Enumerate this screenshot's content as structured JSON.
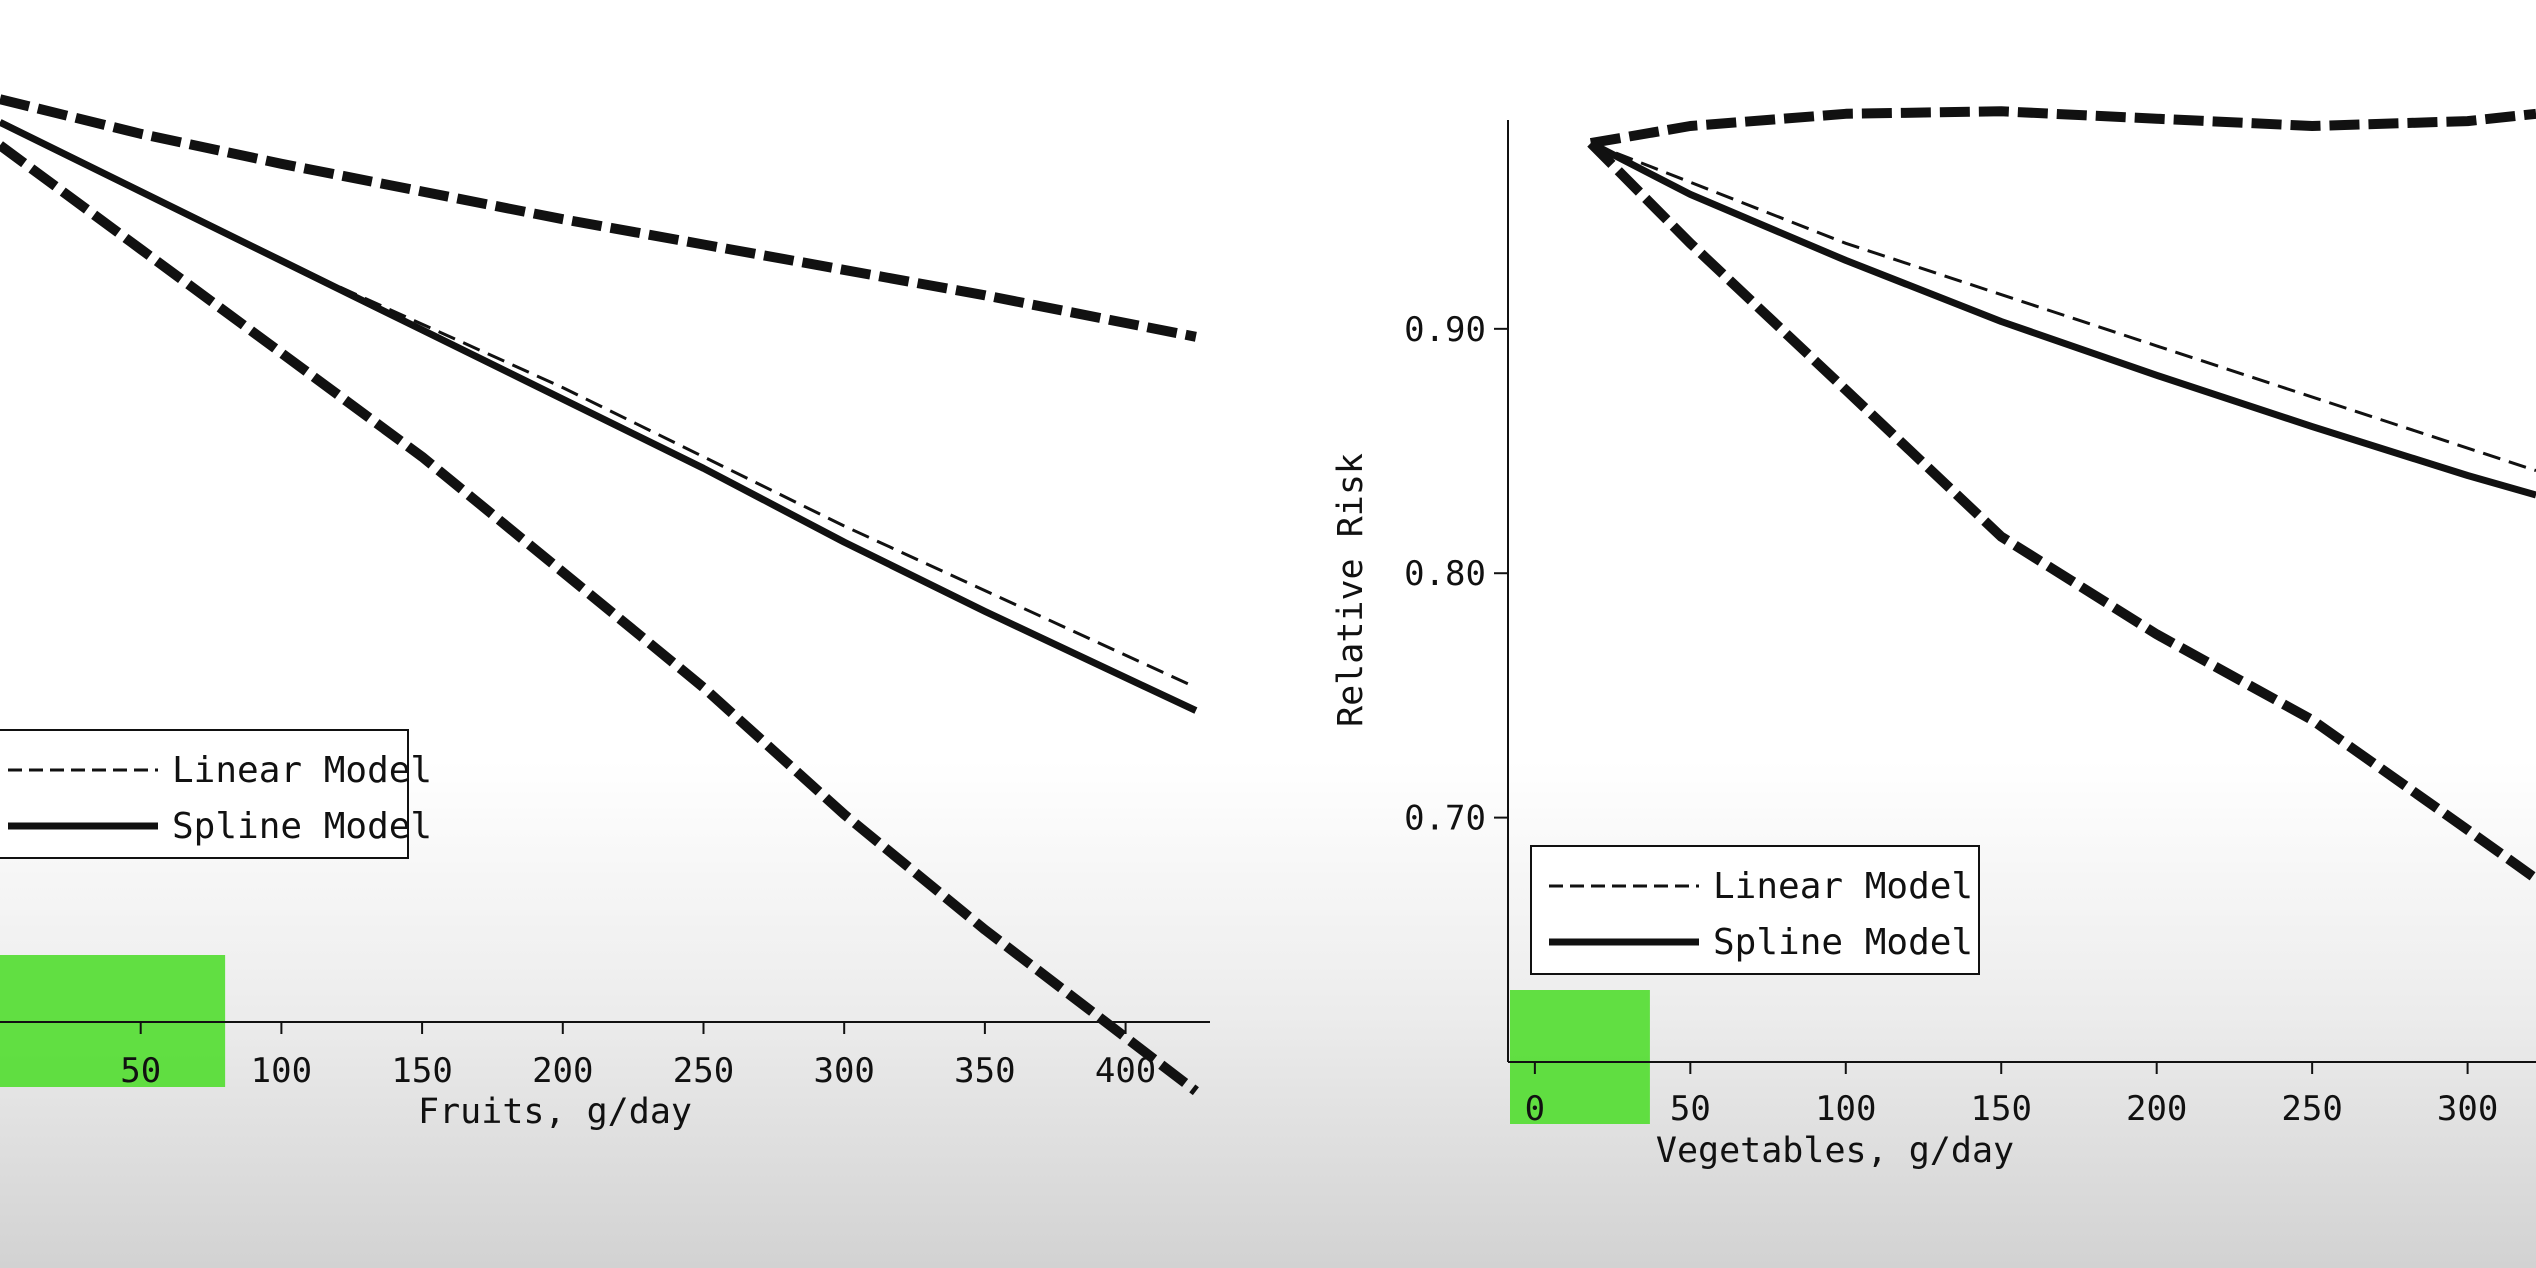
{
  "colors": {
    "ink": "#111111",
    "highlight": "#55dd33",
    "background": "#ffffff"
  },
  "chart_data": [
    {
      "type": "line",
      "xlabel": "Fruits, g/day",
      "ylabel": "",
      "x_ticks": [
        50,
        100,
        150,
        200,
        250,
        300,
        350,
        400
      ],
      "y_ticks": [],
      "xlim": [
        0,
        430
      ],
      "ylim": [
        0.6,
        1.03
      ],
      "grid": false,
      "legend": {
        "placement": "bottom-left",
        "entries": [
          "Linear Model",
          "Spline Model"
        ]
      },
      "highlight_box": {
        "x_from": 0,
        "x_to": 80
      },
      "series": [
        {
          "name": "Linear Model",
          "style": "thin-dashed",
          "x": [
            0,
            100,
            200,
            300,
            425
          ],
          "y": [
            0.99,
            0.93,
            0.875,
            0.815,
            0.745
          ]
        },
        {
          "name": "Spline Model",
          "style": "solid",
          "x": [
            0,
            50,
            100,
            150,
            200,
            250,
            300,
            350,
            425
          ],
          "y": [
            0.99,
            0.96,
            0.93,
            0.9,
            0.87,
            0.84,
            0.808,
            0.778,
            0.735
          ]
        },
        {
          "name": "",
          "style": "heavy-dashed",
          "x": [
            0,
            50,
            100,
            150,
            200,
            250,
            300,
            350,
            425
          ],
          "y": [
            1.0,
            0.985,
            0.972,
            0.96,
            0.948,
            0.937,
            0.926,
            0.915,
            0.897
          ]
        },
        {
          "name": "",
          "style": "heavy-dashed",
          "x": [
            0,
            50,
            100,
            150,
            200,
            250,
            300,
            350,
            425
          ],
          "y": [
            0.98,
            0.935,
            0.89,
            0.845,
            0.795,
            0.745,
            0.69,
            0.64,
            0.57
          ]
        }
      ]
    },
    {
      "type": "line",
      "xlabel": "Vegetables, g/day",
      "ylabel": "Relative Risk",
      "x_ticks": [
        0,
        50,
        100,
        150,
        200,
        250,
        300
      ],
      "y_ticks": [
        0.7,
        0.8,
        0.9
      ],
      "y_tick_labels": [
        "0.70",
        "0.80",
        "0.90"
      ],
      "xlim": [
        -8,
        322
      ],
      "ylim": [
        0.6,
        1.01
      ],
      "grid": false,
      "legend": {
        "placement": "bottom-left",
        "entries": [
          "Linear Model",
          "Spline Model"
        ]
      },
      "highlight_box": {
        "x_from": -8,
        "x_to": 37
      },
      "series": [
        {
          "name": "Linear Model",
          "style": "thin-dashed",
          "x": [
            18,
            100,
            200,
            322
          ],
          "y": [
            0.976,
            0.935,
            0.893,
            0.842
          ]
        },
        {
          "name": "Spline Model",
          "style": "solid",
          "x": [
            18,
            50,
            100,
            150,
            200,
            250,
            300,
            322
          ],
          "y": [
            0.976,
            0.955,
            0.928,
            0.903,
            0.881,
            0.86,
            0.84,
            0.832
          ]
        },
        {
          "name": "",
          "style": "heavy-dashed",
          "x": [
            18,
            50,
            100,
            150,
            200,
            250,
            300,
            322
          ],
          "y": [
            0.976,
            0.983,
            0.988,
            0.989,
            0.986,
            0.983,
            0.985,
            0.988
          ]
        },
        {
          "name": "",
          "style": "heavy-dashed",
          "x": [
            18,
            50,
            100,
            150,
            200,
            250,
            300,
            322
          ],
          "y": [
            0.976,
            0.935,
            0.875,
            0.815,
            0.775,
            0.74,
            0.695,
            0.675
          ]
        }
      ]
    }
  ]
}
